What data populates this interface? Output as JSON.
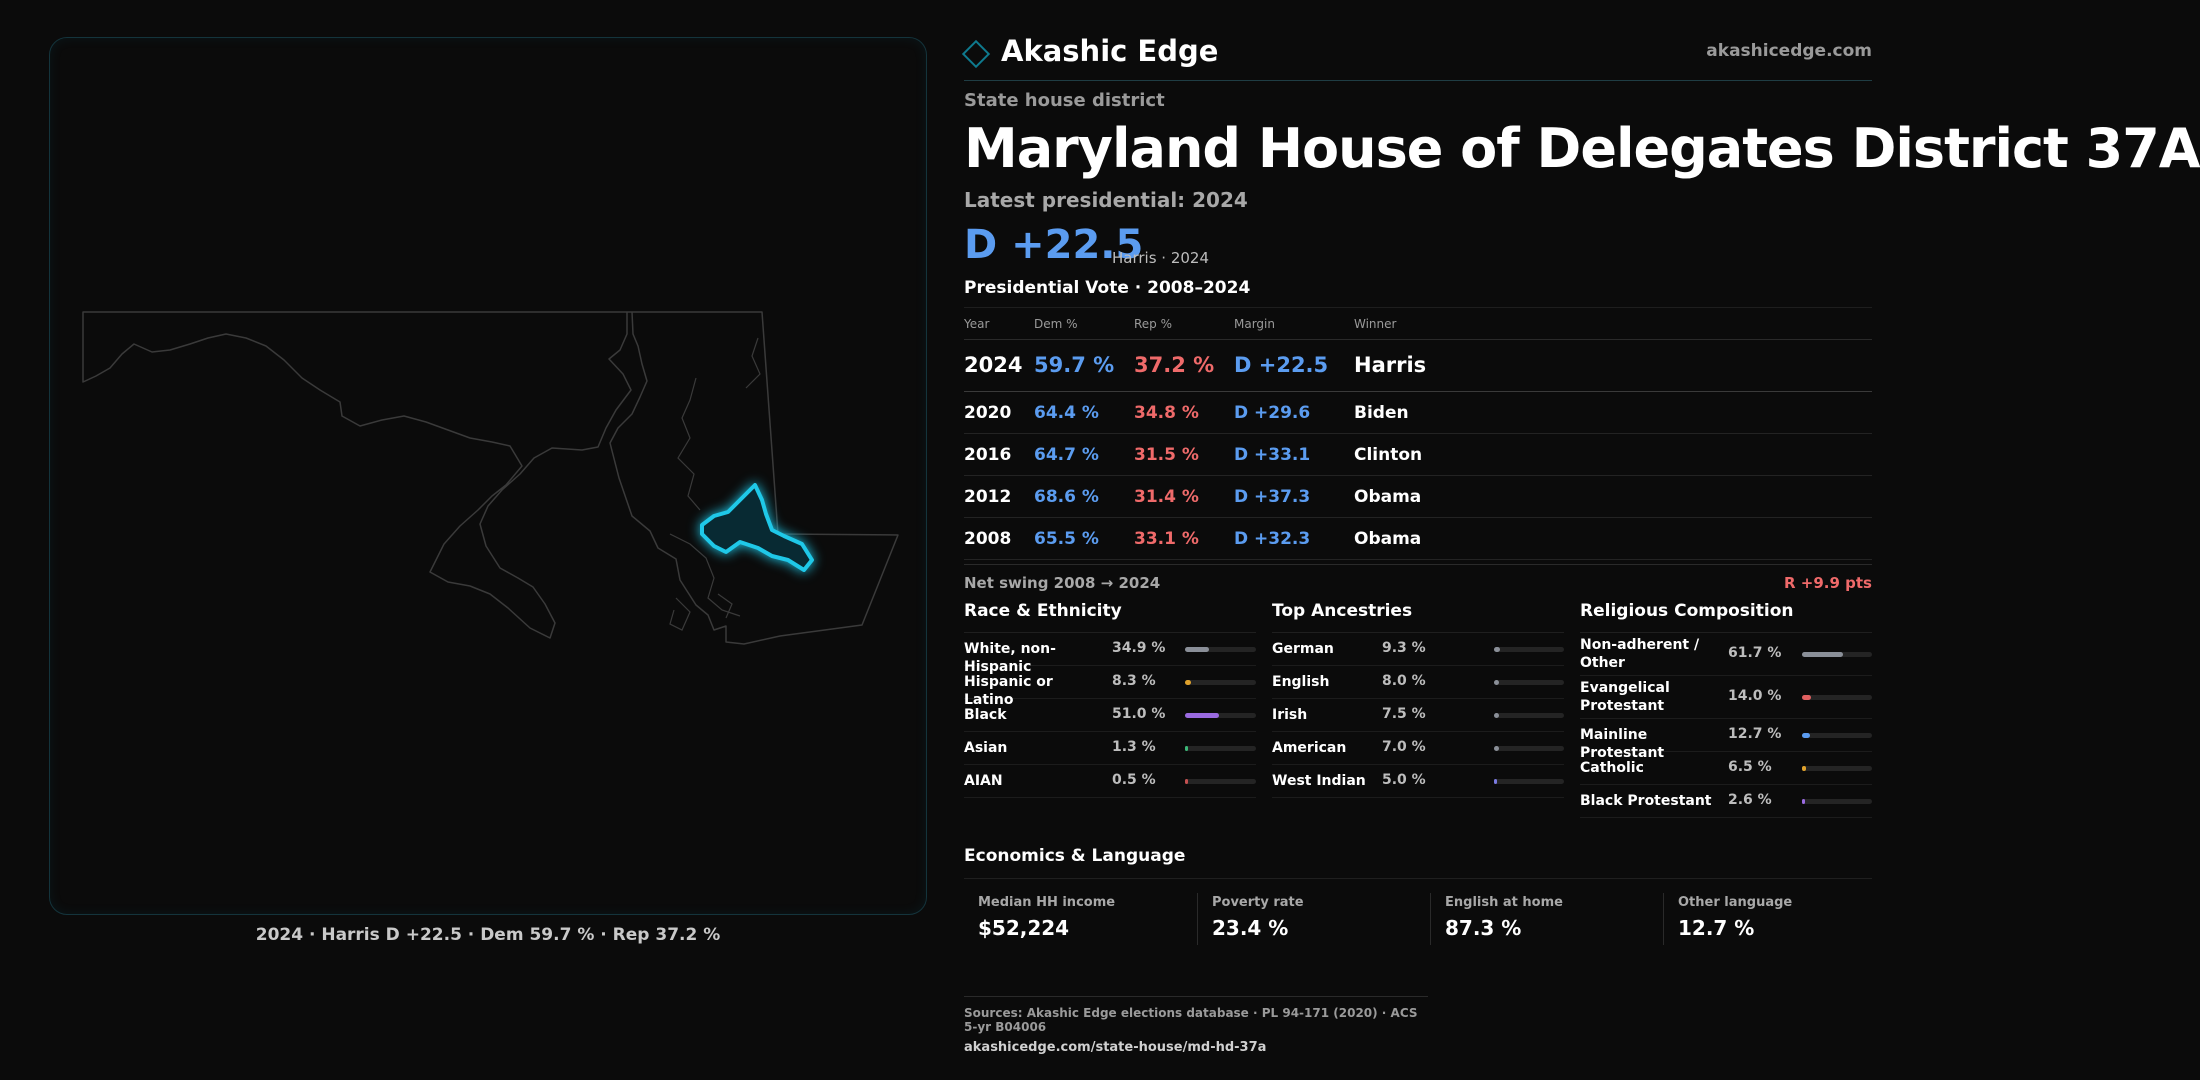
{
  "brand": {
    "name": "Akashic Edge",
    "url": "akashicedge.com"
  },
  "header": {
    "kicker": "State house district",
    "title": "Maryland House of Delegates District 37A",
    "latest": "Latest presidential: 2024",
    "margin": "D +22.5",
    "margin_sub": "Harris · 2024"
  },
  "map": {
    "caption": "2024 · Harris D +22.5 · Dem 59.7 % · Rep 37.2 %",
    "icon": "maryland-state-outline",
    "highlight_color": "#1fc8e8"
  },
  "presidential": {
    "title": "Presidential Vote · 2008–2024",
    "headers": {
      "year": "Year",
      "dem": "Dem %",
      "rep": "Rep %",
      "margin": "Margin",
      "winner": "Winner"
    },
    "rows": [
      {
        "year": "2024",
        "dem": "59.7 %",
        "rep": "37.2 %",
        "margin": "D +22.5",
        "winner": "Harris"
      },
      {
        "year": "2020",
        "dem": "64.4 %",
        "rep": "34.8 %",
        "margin": "D +29.6",
        "winner": "Biden"
      },
      {
        "year": "2016",
        "dem": "64.7 %",
        "rep": "31.5 %",
        "margin": "D +33.1",
        "winner": "Clinton"
      },
      {
        "year": "2012",
        "dem": "68.6 %",
        "rep": "31.4 %",
        "margin": "D +37.3",
        "winner": "Obama"
      },
      {
        "year": "2008",
        "dem": "65.5 %",
        "rep": "33.1 %",
        "margin": "D +32.3",
        "winner": "Obama"
      }
    ]
  },
  "swing": {
    "label": "Net swing 2008 → 2024",
    "value": "R +9.9 pts"
  },
  "race": {
    "title": "Race & Ethnicity",
    "items": [
      {
        "label": "White, non-Hispanic",
        "value": "34.9 %",
        "fraction": 0.349,
        "color": "#8a8f98"
      },
      {
        "label": "Hispanic or Latino",
        "value": "8.3 %",
        "fraction": 0.083,
        "color": "#e0a22c"
      },
      {
        "label": "Black",
        "value": "51.0 %",
        "fraction": 0.51,
        "color": "#9a6ae0"
      },
      {
        "label": "Asian",
        "value": "1.3 %",
        "fraction": 0.013,
        "color": "#3cb878"
      },
      {
        "label": "AIAN",
        "value": "0.5 %",
        "fraction": 0.005,
        "color": "#c45050"
      }
    ]
  },
  "ancestry": {
    "title": "Top Ancestries",
    "items": [
      {
        "label": "German",
        "value": "9.3 %",
        "fraction": 0.093,
        "color": "#8a8f98"
      },
      {
        "label": "English",
        "value": "8.0 %",
        "fraction": 0.08,
        "color": "#8a8f98"
      },
      {
        "label": "Irish",
        "value": "7.5 %",
        "fraction": 0.075,
        "color": "#8a8f98"
      },
      {
        "label": "American",
        "value": "7.0 %",
        "fraction": 0.07,
        "color": "#8a8f98"
      },
      {
        "label": "West Indian",
        "value": "5.0 %",
        "fraction": 0.05,
        "color": "#7a7ae0"
      }
    ]
  },
  "religion": {
    "title": "Religious Composition",
    "items": [
      {
        "label": "Non-adherent / Other",
        "value": "61.7 %",
        "fraction": 0.617,
        "color": "#8a8f98"
      },
      {
        "label": "Evangelical Protestant",
        "value": "14.0 %",
        "fraction": 0.14,
        "color": "#e06060"
      },
      {
        "label": "Mainline Protestant",
        "value": "12.7 %",
        "fraction": 0.127,
        "color": "#5b9cf0"
      },
      {
        "label": "Catholic",
        "value": "6.5 %",
        "fraction": 0.065,
        "color": "#e0a22c"
      },
      {
        "label": "Black Protestant",
        "value": "2.6 %",
        "fraction": 0.026,
        "color": "#9a6ae0"
      }
    ]
  },
  "economics": {
    "title": "Economics & Language",
    "cells": [
      {
        "label": "Median HH income",
        "value": "$52,224"
      },
      {
        "label": "Poverty rate",
        "value": "23.4 %"
      },
      {
        "label": "English at home",
        "value": "87.3 %"
      },
      {
        "label": "Other language",
        "value": "12.7 %"
      }
    ]
  },
  "sources": {
    "line": "Sources: Akashic Edge elections database · PL 94-171 (2020) · ACS 5-yr B04006",
    "url": "akashicedge.com/state-house/md-hd-37a"
  }
}
